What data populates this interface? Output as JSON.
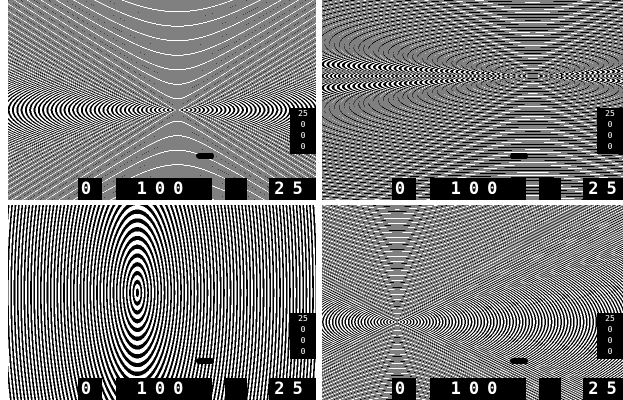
{
  "panels": [
    {
      "hud": {
        "left": "0",
        "middle": "100",
        "right": "25"
      },
      "side": [
        "25",
        "0",
        "0",
        "0"
      ]
    },
    {
      "hud": {
        "left": "0",
        "middle": "100",
        "right": "25"
      },
      "side": [
        "25",
        "0",
        "0",
        "0"
      ]
    },
    {
      "hud": {
        "left": "0",
        "middle": "100",
        "right": "25"
      },
      "side": [
        "25",
        "0",
        "0",
        "0"
      ]
    },
    {
      "hud": {
        "left": "0",
        "middle": "100",
        "right": "25"
      },
      "side": [
        "25",
        "0",
        "0",
        "0"
      ]
    }
  ]
}
